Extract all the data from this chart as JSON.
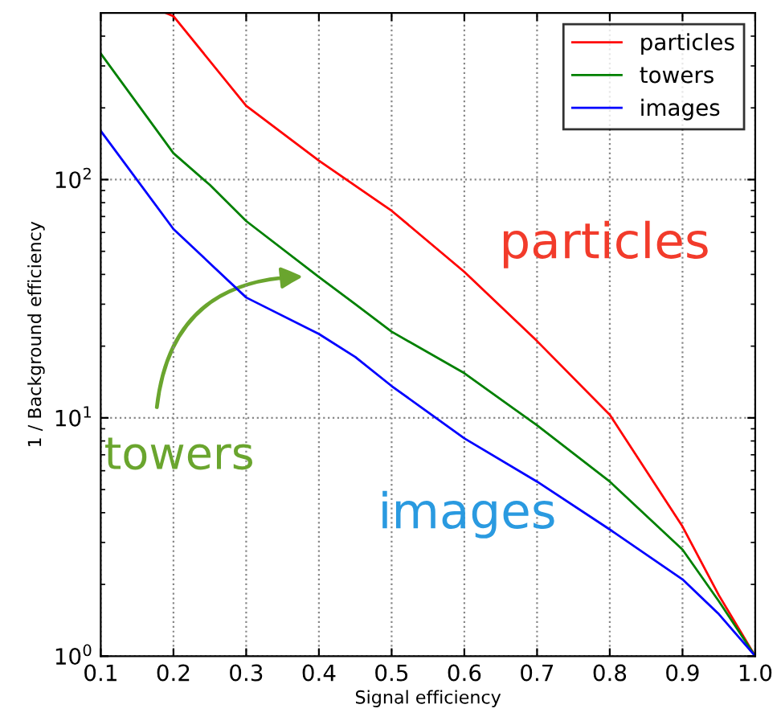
{
  "chart_data": {
    "type": "line",
    "xlabel": "Signal efficiency",
    "ylabel": "1 / Background efficiency",
    "log": "y",
    "grid": true,
    "legend": "top right",
    "line_style": "solid",
    "marker": "none",
    "xlim": [
      0.1,
      1.0
    ],
    "xticks": [
      0.1,
      0.2,
      0.3,
      0.4,
      0.5,
      0.6,
      0.7,
      0.8,
      0.9,
      {
        "value": 1.0,
        "label": "1.0"
      }
    ],
    "ylim": [
      1,
      500
    ],
    "yticks": [
      {
        "value": 1,
        "label": "10$^{0}$"
      },
      {
        "value": 10,
        "label": "10$^{1}$"
      },
      {
        "value": 100,
        "label": "10$^{2}$"
      }
    ],
    "annotations": [
      "particles",
      "towers",
      "images"
    ],
    "series": [
      {
        "name": "particles",
        "color": "#ff0000",
        "x": [
          0.19,
          0.2,
          0.3,
          0.4,
          0.5,
          0.6,
          0.7,
          0.8,
          0.9,
          0.95,
          1.0
        ],
        "values": [
          500,
          485,
          204,
          120,
          74,
          41,
          21,
          10.3,
          3.5,
          1.8,
          1
        ]
      },
      {
        "name": "towers",
        "color": "#008000",
        "x": [
          0.1,
          0.2,
          0.25,
          0.3,
          0.4,
          0.45,
          0.5,
          0.6,
          0.7,
          0.8,
          0.9,
          0.95,
          1.0
        ],
        "values": [
          338,
          129,
          95,
          67,
          39,
          30,
          23,
          15.4,
          9.3,
          5.4,
          2.8,
          1.7,
          1
        ]
      },
      {
        "name": "images",
        "color": "#0000ff",
        "x": [
          0.1,
          0.2,
          0.3,
          0.4,
          0.45,
          0.5,
          0.6,
          0.7,
          0.8,
          0.9,
          0.95,
          1.0
        ],
        "values": [
          160,
          62,
          32,
          22.5,
          18,
          13.6,
          8.2,
          5.4,
          3.4,
          2.1,
          1.5,
          1
        ]
      }
    ]
  }
}
